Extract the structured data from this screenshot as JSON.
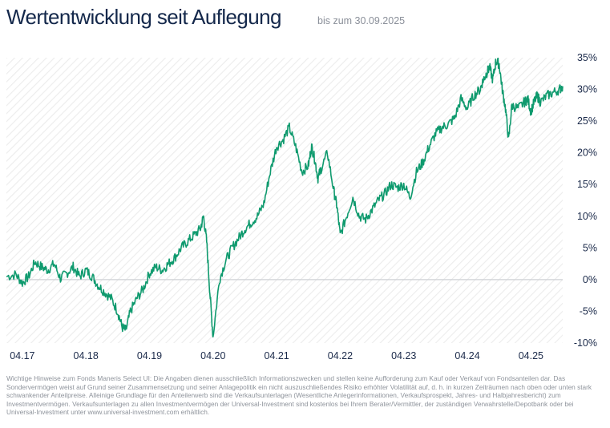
{
  "header": {
    "title": "Wertentwicklung seit Auflegung",
    "subtitle": "bis zum 30.09.2025"
  },
  "chart_data": {
    "type": "line",
    "title": "Wertentwicklung seit Auflegung",
    "subtitle": "bis zum 30.09.2025",
    "xlabel": "",
    "ylabel": "",
    "ylim": [
      -10,
      35
    ],
    "xlim": [
      2017.0,
      2025.75
    ],
    "grid": false,
    "background": "diagonal-hatch",
    "x_ticks": [
      {
        "label": "04.17",
        "x": 2017.25
      },
      {
        "label": "04.18",
        "x": 2018.25
      },
      {
        "label": "04.19",
        "x": 2019.25
      },
      {
        "label": "04.20",
        "x": 2020.25
      },
      {
        "label": "04.21",
        "x": 2021.25
      },
      {
        "label": "04.22",
        "x": 2022.25
      },
      {
        "label": "04.23",
        "x": 2023.25
      },
      {
        "label": "04.24",
        "x": 2024.25
      },
      {
        "label": "04.25",
        "x": 2025.25
      }
    ],
    "y_ticks": [
      {
        "label": "35%",
        "value": 35
      },
      {
        "label": "30%",
        "value": 30
      },
      {
        "label": "25%",
        "value": 25
      },
      {
        "label": "20%",
        "value": 20
      },
      {
        "label": "15%",
        "value": 15
      },
      {
        "label": "10%",
        "value": 10
      },
      {
        "label": "5%",
        "value": 5
      },
      {
        "label": "0%",
        "value": 0
      },
      {
        "label": "-5%",
        "value": -5
      },
      {
        "label": "-10%",
        "value": -10
      }
    ],
    "baseline": 0,
    "series": [
      {
        "name": "Fonds Maneris Select UI",
        "color": "#0f9a6e",
        "x": [
          2017.0,
          2017.15,
          2017.25,
          2017.35,
          2017.45,
          2017.55,
          2017.65,
          2017.75,
          2017.85,
          2017.95,
          2018.05,
          2018.15,
          2018.25,
          2018.35,
          2018.45,
          2018.55,
          2018.65,
          2018.75,
          2018.82,
          2018.88,
          2018.95,
          2019.05,
          2019.15,
          2019.25,
          2019.35,
          2019.45,
          2019.55,
          2019.65,
          2019.75,
          2019.85,
          2019.95,
          2020.05,
          2020.1,
          2020.15,
          2020.2,
          2020.25,
          2020.35,
          2020.45,
          2020.55,
          2020.65,
          2020.75,
          2020.85,
          2020.95,
          2021.05,
          2021.15,
          2021.25,
          2021.35,
          2021.45,
          2021.55,
          2021.65,
          2021.75,
          2021.8,
          2021.85,
          2021.9,
          2021.95,
          2022.05,
          2022.15,
          2022.2,
          2022.25,
          2022.35,
          2022.45,
          2022.55,
          2022.65,
          2022.75,
          2022.85,
          2022.95,
          2023.05,
          2023.15,
          2023.25,
          2023.35,
          2023.45,
          2023.55,
          2023.65,
          2023.75,
          2023.85,
          2023.95,
          2024.05,
          2024.15,
          2024.25,
          2024.35,
          2024.45,
          2024.5,
          2024.55,
          2024.6,
          2024.65,
          2024.7,
          2024.75,
          2024.8,
          2024.85,
          2024.9,
          2024.95,
          2025.05,
          2025.15,
          2025.2,
          2025.25,
          2025.3,
          2025.35,
          2025.4,
          2025.5,
          2025.6,
          2025.7,
          2025.75
        ],
        "y": [
          0.5,
          0.8,
          -0.5,
          0.5,
          2.8,
          2.0,
          1.5,
          2.5,
          0.2,
          1.0,
          2.0,
          0.5,
          1.5,
          0.5,
          -1.0,
          -2.0,
          -3.0,
          -5.0,
          -7.5,
          -8.0,
          -5.0,
          -3.0,
          -1.5,
          1.0,
          2.0,
          1.5,
          2.5,
          3.5,
          5.0,
          6.0,
          7.0,
          8.0,
          10.0,
          6.0,
          -2.0,
          -9.0,
          0.0,
          3.0,
          5.0,
          6.5,
          8.0,
          9.0,
          10.0,
          12.0,
          17.0,
          21.0,
          22.0,
          24.0,
          21.0,
          17.0,
          18.0,
          21.0,
          19.0,
          16.0,
          17.5,
          20.0,
          14.0,
          11.5,
          7.0,
          10.0,
          13.0,
          10.0,
          9.5,
          11.0,
          12.5,
          13.5,
          15.0,
          14.5,
          15.0,
          13.0,
          17.0,
          18.5,
          21.0,
          23.0,
          24.0,
          24.5,
          25.5,
          28.5,
          27.0,
          29.0,
          30.0,
          31.5,
          32.5,
          33.5,
          31.5,
          34.5,
          34.0,
          30.0,
          27.0,
          22.0,
          27.5,
          27.0,
          28.0,
          28.5,
          26.5,
          28.0,
          29.0,
          28.0,
          29.0,
          29.5,
          30.0,
          30.5
        ]
      }
    ]
  },
  "disclaimer": "Wichtige Hinweise zum Fonds Maneris Select UI: Die Angaben dienen ausschließlich Informationszwecken und stellen keine Aufforderung zum Kauf oder Verkauf von Fondsanteilen dar. Das Sondervermögen weist auf Grund seiner Zusammensetzung und seiner Anlagepolitik ein nicht auszuschließendes Risiko erhöhter Volatilität auf, d. h. in kurzen Zeiträumen nach oben oder unten stark schwankender Anteilpreise. Alleinige Grundlage für den Anteilerwerb sind die Verkaufsunterlagen (Wesentliche Anlegerinformationen, Verkaufsprospekt, Jahres- und Halbjahresbericht) zum Investmentvermögen. Verkaufsunterlagen zu allen Investmentvermögen der Universal-Investment sind kostenlos bei Ihrem Berater/Vermittler, der zuständigen Verwahrstelle/Depotbank oder bei Universal-Investment unter www.universal-investment.com erhältlich."
}
